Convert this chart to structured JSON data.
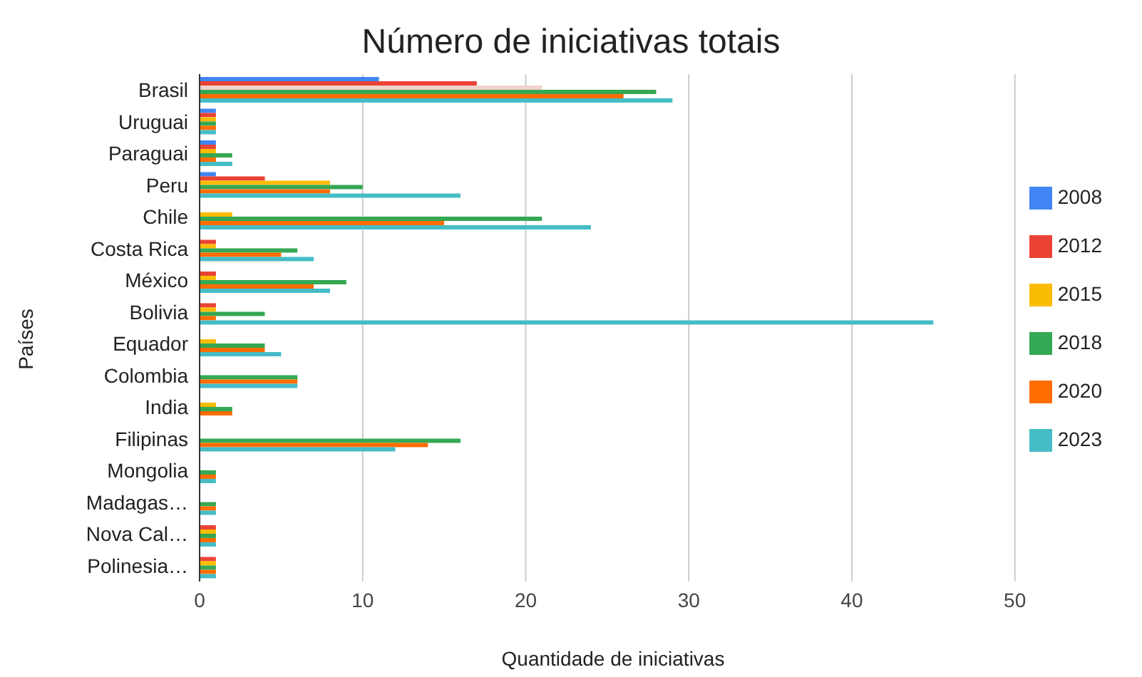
{
  "chart_data": {
    "type": "bar",
    "orientation": "horizontal",
    "title": "Número de iniciativas totais",
    "xlabel": "Quantidade de iniciativas",
    "ylabel": "Países",
    "categories": [
      "Brasil",
      "Uruguai",
      "Paraguai",
      "Peru",
      "Chile",
      "Costa Rica",
      "México",
      "Bolivia",
      "Equador",
      "Colombia",
      "India",
      "Filipinas",
      "Mongolia",
      "Madagas…",
      "Nova Cal…",
      "Polinesia…"
    ],
    "series": [
      {
        "name": "2008",
        "color": "#4285f4",
        "values": [
          11,
          1,
          1,
          1,
          null,
          null,
          null,
          null,
          null,
          null,
          null,
          null,
          null,
          null,
          null,
          null
        ]
      },
      {
        "name": "2012",
        "color": "#ea4335",
        "values": [
          17,
          1,
          1,
          4,
          null,
          1,
          1,
          1,
          null,
          null,
          null,
          null,
          null,
          null,
          1,
          1
        ]
      },
      {
        "name": "2015",
        "color": "#fbbc04",
        "colors": [
          "#f2d2cf",
          "#fbbc04",
          "#fbbc04",
          "#fbbc04",
          "#fbbc04",
          "#fbbc04",
          "#fbbc04",
          "#fbbc04",
          "#fbbc04",
          "#fbbc04",
          "#fbbc04",
          "#fbbc04",
          "#fbbc04",
          "#fbbc04",
          "#fbbc04",
          "#fbbc04"
        ],
        "values": [
          21,
          1,
          1,
          8,
          2,
          1,
          1,
          1,
          1,
          null,
          1,
          null,
          null,
          null,
          1,
          1
        ]
      },
      {
        "name": "2018",
        "color": "#34a853",
        "values": [
          28,
          1,
          2,
          10,
          21,
          6,
          9,
          4,
          4,
          6,
          2,
          16,
          1,
          1,
          1,
          1
        ]
      },
      {
        "name": "2020",
        "color": "#ff6d01",
        "values": [
          26,
          1,
          1,
          8,
          15,
          5,
          7,
          1,
          4,
          6,
          2,
          14,
          1,
          1,
          1,
          1
        ]
      },
      {
        "name": "2023",
        "color": "#46bdc6",
        "values": [
          29,
          1,
          2,
          16,
          24,
          7,
          8,
          45,
          5,
          6,
          null,
          12,
          1,
          1,
          1,
          1
        ]
      }
    ],
    "xlim": [
      0,
      50
    ],
    "xticks": [
      0,
      10,
      20,
      30,
      40,
      50
    ],
    "grid": "x",
    "legend": "right"
  }
}
